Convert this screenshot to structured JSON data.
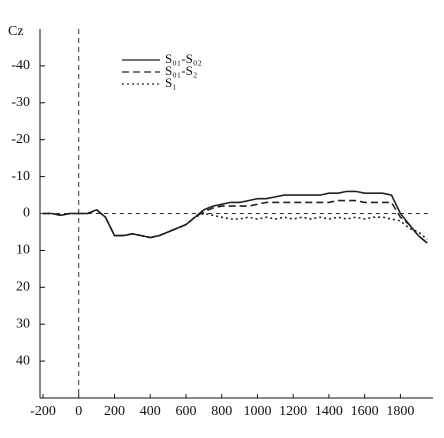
{
  "chart_data": {
    "type": "line",
    "y_label": "Cz",
    "x": [
      -200,
      -150,
      -100,
      -50,
      0,
      50,
      100,
      150,
      200,
      250,
      300,
      350,
      400,
      450,
      500,
      550,
      600,
      650,
      700,
      750,
      800,
      850,
      900,
      950,
      1000,
      1050,
      1100,
      1150,
      1200,
      1250,
      1300,
      1350,
      1400,
      1450,
      1500,
      1550,
      1600,
      1650,
      1700,
      1750,
      1800,
      1850,
      1900,
      1950
    ],
    "series": [
      {
        "name": "S₀₁-S₀₂",
        "color": "#222",
        "dash": "solid",
        "values": [
          0,
          0,
          0.5,
          0,
          0,
          0,
          -1,
          1,
          6,
          6,
          5.5,
          6,
          6.5,
          6,
          5,
          4,
          3,
          1,
          -1,
          -2,
          -2.5,
          -3,
          -3,
          -3.5,
          -4,
          -4,
          -4.5,
          -5,
          -5,
          -5,
          -5,
          -5,
          -5.5,
          -5.5,
          -6,
          -6,
          -5.5,
          -5.5,
          -5.5,
          -5,
          0,
          3,
          6,
          8
        ]
      },
      {
        "name": "S₀₁-S₂",
        "color": "#222",
        "dash": "dashed",
        "values": [
          0,
          0,
          0.5,
          0,
          0,
          0,
          -1,
          1,
          6,
          6,
          5.5,
          6,
          6.5,
          6,
          5,
          4,
          3,
          1,
          -0.5,
          -1.5,
          -2,
          -2,
          -2,
          -2,
          -2.5,
          -3,
          -3,
          -3,
          -3,
          -3,
          -3,
          -3,
          -3,
          -3.5,
          -3.5,
          -3.5,
          -3,
          -3,
          -3,
          -3,
          1,
          3,
          6,
          8
        ]
      },
      {
        "name": "S₁",
        "color": "#222",
        "dash": "dotted",
        "values": [
          0,
          0,
          0.5,
          0,
          0,
          0,
          -1,
          1,
          6,
          6,
          5.5,
          6,
          6.5,
          6,
          5,
          4,
          3,
          1,
          0,
          0.5,
          1,
          1.5,
          1.5,
          1,
          1.5,
          1,
          1.5,
          1,
          1.5,
          1,
          1.5,
          1,
          1.5,
          1,
          1.5,
          1,
          1.5,
          1,
          1,
          1.5,
          2,
          4,
          5,
          7
        ]
      }
    ],
    "xlim": [
      -200,
      1960
    ],
    "xticks": [
      -200,
      0,
      200,
      400,
      600,
      800,
      1000,
      1200,
      1400,
      1600,
      1800
    ],
    "ylim": [
      -50,
      50
    ],
    "yticks": [
      -40,
      -30,
      -20,
      -10,
      0,
      10,
      20,
      30,
      40
    ],
    "y_inverted": true
  }
}
